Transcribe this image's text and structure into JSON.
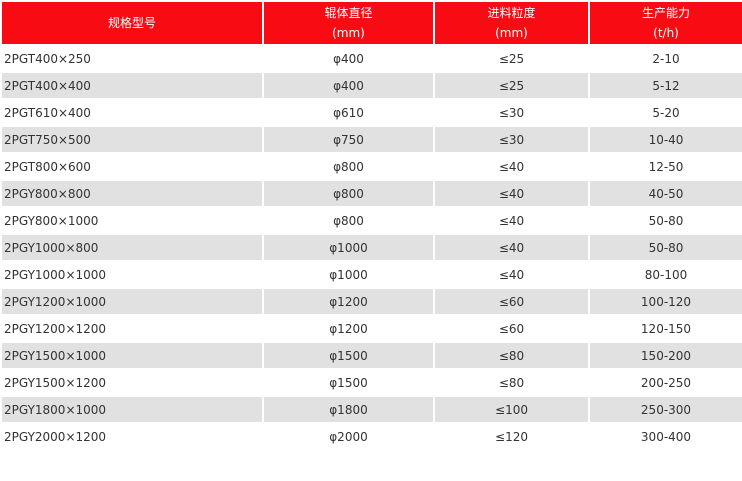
{
  "headers": [
    {
      "l1": "规格型号",
      "l2": ""
    },
    {
      "l1": "辊体直径",
      "l2": "(mm)"
    },
    {
      "l1": "进料粒度",
      "l2": "(mm)"
    },
    {
      "l1": "生产能力",
      "l2": "(t/h)"
    }
  ],
  "rows": [
    [
      "2PGT400×250",
      "φ400",
      "≤25",
      "2-10"
    ],
    [
      "2PGT400×400",
      "φ400",
      "≤25",
      "5-12"
    ],
    [
      "2PGT610×400",
      "φ610",
      "≤30",
      "5-20"
    ],
    [
      "2PGT750×500",
      "φ750",
      "≤30",
      "10-40"
    ],
    [
      "2PGT800×600",
      "φ800",
      "≤40",
      "12-50"
    ],
    [
      "2PGY800×800",
      "φ800",
      "≤40",
      "40-50"
    ],
    [
      "2PGY800×1000",
      "φ800",
      "≤40",
      "50-80"
    ],
    [
      "2PGY1000×800",
      "φ1000",
      "≤40",
      "50-80"
    ],
    [
      "2PGY1000×1000",
      "φ1000",
      "≤40",
      "80-100"
    ],
    [
      "2PGY1200×1000",
      "φ1200",
      "≤60",
      "100-120"
    ],
    [
      "2PGY1200×1200",
      "φ1200",
      "≤60",
      "120-150"
    ],
    [
      "2PGY1500×1000",
      "φ1500",
      "≤80",
      "150-200"
    ],
    [
      "2PGY1500×1200",
      "φ1500",
      "≤80",
      "200-250"
    ],
    [
      "2PGY1800×1000",
      "φ1800",
      "≤100",
      "250-300"
    ],
    [
      "2PGY2000×1200",
      "φ2000",
      "≤120",
      "300-400"
    ]
  ],
  "colors": {
    "header": "#f80b12",
    "stripe": "#e1e1e1"
  }
}
